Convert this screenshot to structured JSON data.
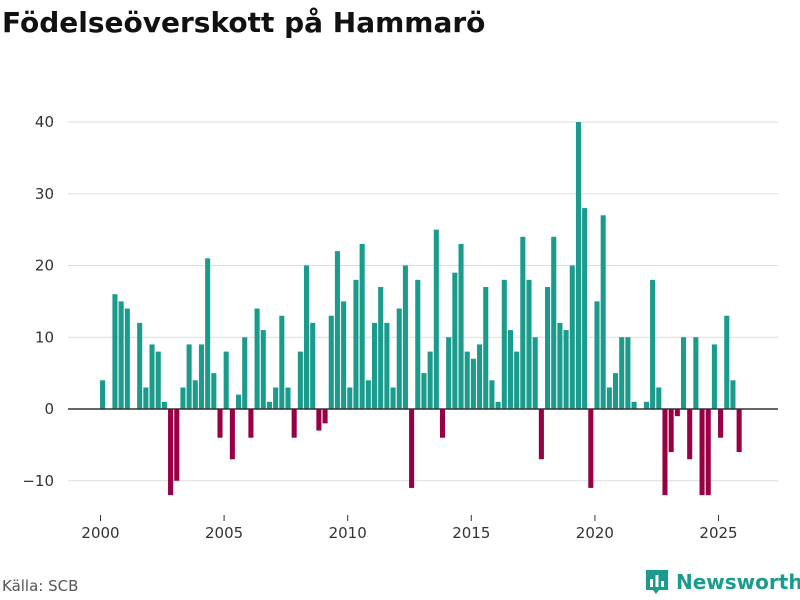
{
  "title": "Födelseöverskott på Hammarö",
  "source": "Källa: SCB",
  "brand": "Newsworthy",
  "colors": {
    "positive": "#1a9b8c",
    "negative": "#990044",
    "grid": "#dddddd",
    "axis": "#333333"
  },
  "chart_data": {
    "type": "bar",
    "title": "Födelseöverskott på Hammarö",
    "xlabel": "",
    "ylabel": "",
    "frequency": "quarterly",
    "start": 2000.0,
    "step": 0.25,
    "ylim": [
      -12.5,
      42
    ],
    "xlim": [
      1999.3,
      2026.75
    ],
    "yticks": [
      -10,
      0,
      10,
      20,
      30,
      40
    ],
    "ytick_labels": [
      "−10",
      "0",
      "10",
      "20",
      "30",
      "40"
    ],
    "xticks": [
      2000,
      2005,
      2010,
      2015,
      2020,
      2025
    ],
    "xtick_labels": [
      "2000",
      "2005",
      "2010",
      "2015",
      "2020",
      "2025"
    ],
    "values": [
      4,
      0,
      16,
      15,
      14,
      0,
      12,
      3,
      9,
      8,
      1,
      -12,
      -10,
      3,
      9,
      4,
      9,
      21,
      5,
      -4,
      8,
      -7,
      2,
      10,
      -4,
      14,
      11,
      1,
      3,
      13,
      3,
      -4,
      8,
      20,
      12,
      -3,
      -2,
      13,
      22,
      15,
      3,
      18,
      23,
      4,
      12,
      17,
      12,
      3,
      14,
      20,
      -11,
      18,
      5,
      8,
      25,
      -4,
      10,
      19,
      23,
      8,
      7,
      9,
      17,
      4,
      1,
      18,
      11,
      8,
      24,
      18,
      10,
      -7,
      17,
      24,
      12,
      11,
      20,
      40,
      28,
      -11,
      15,
      27,
      3,
      5,
      10,
      10,
      1,
      0,
      1,
      18,
      3,
      -12,
      -6,
      -1,
      10,
      -7,
      10,
      -12,
      -12,
      9,
      -4,
      13,
      4,
      -6
    ]
  }
}
